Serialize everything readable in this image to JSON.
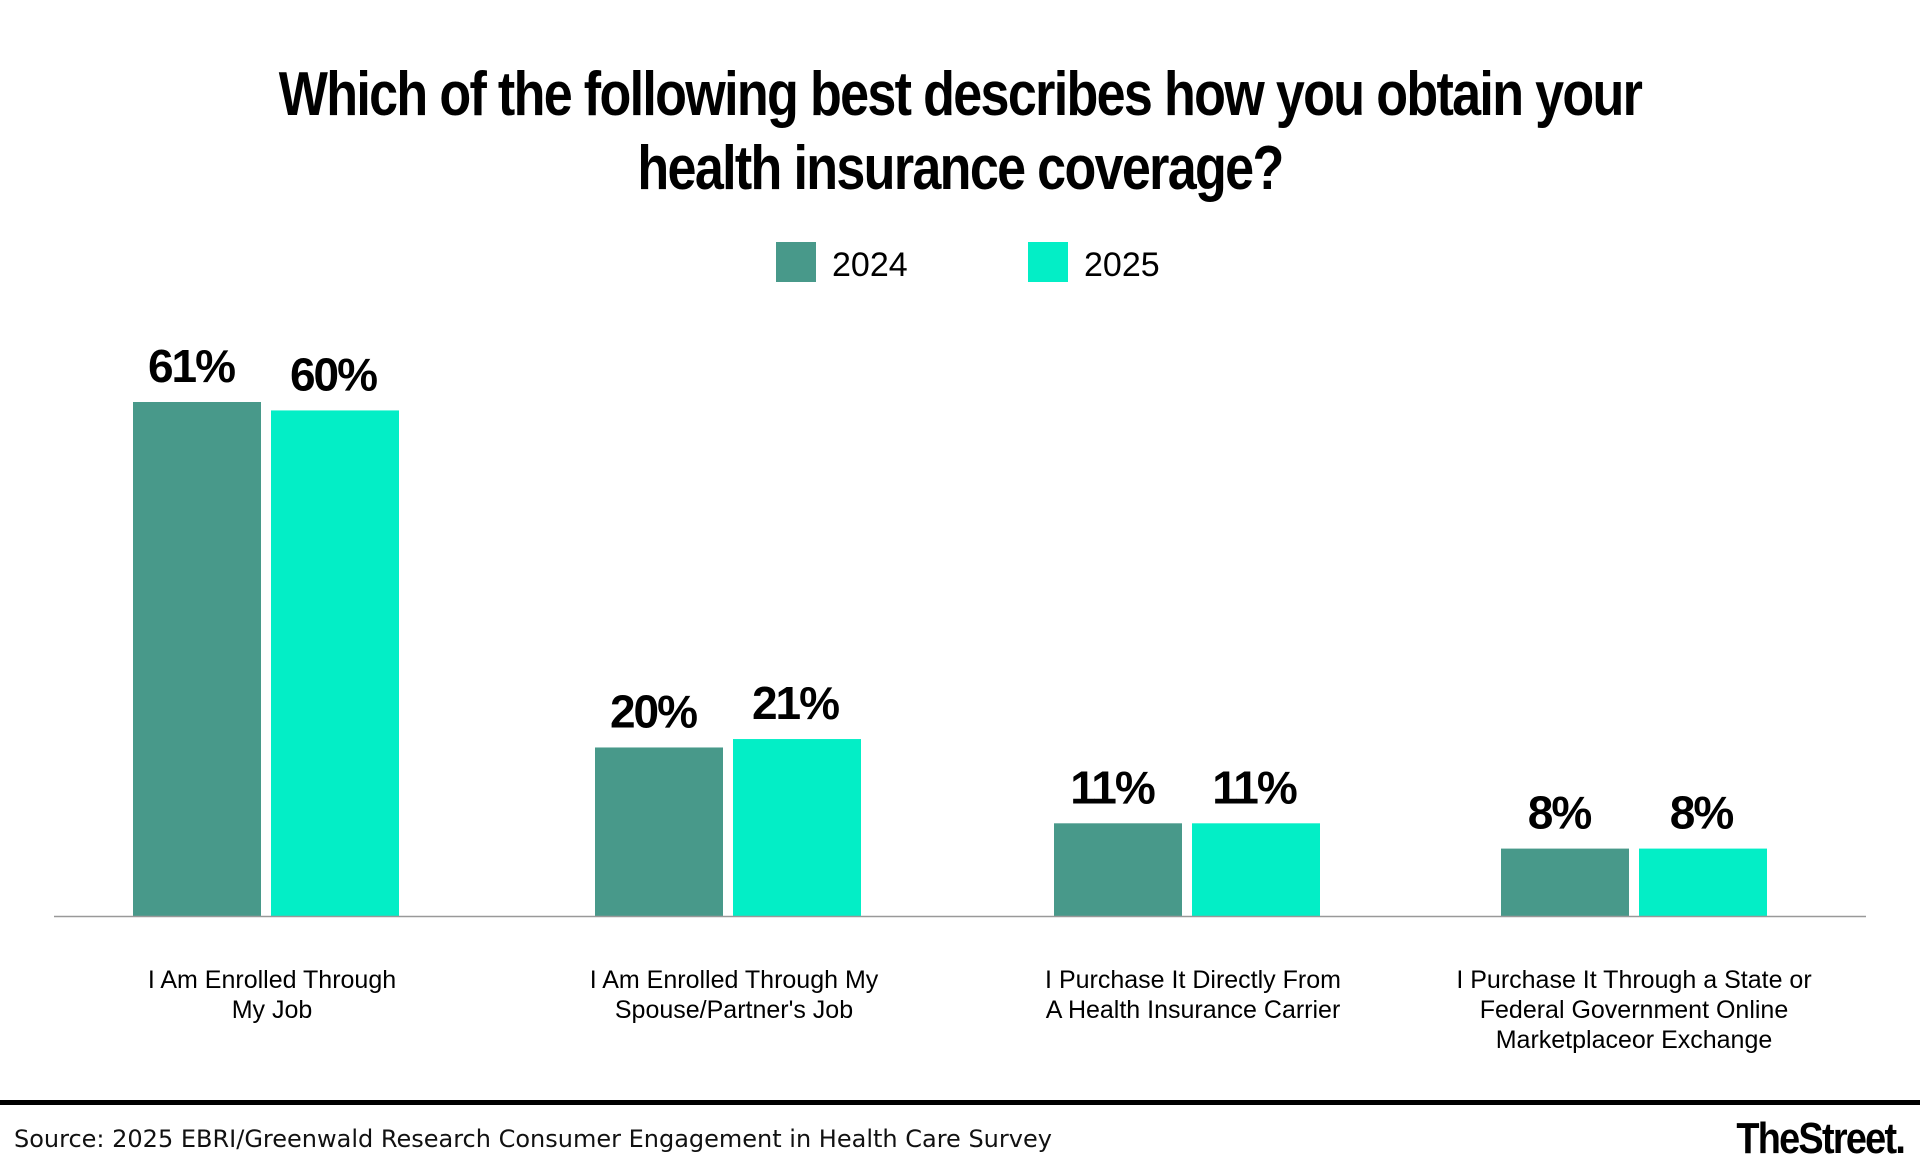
{
  "chart_data": {
    "type": "bar",
    "title": "Which of the following best describes how you obtain your health insurance coverage?",
    "categories": [
      [
        "I Am Enrolled Through",
        "My Job"
      ],
      [
        "I Am Enrolled Through My",
        "Spouse/Partner's Job"
      ],
      [
        "I Purchase It Directly From",
        "A Health Insurance Carrier"
      ],
      [
        "I Purchase It Through a State or",
        "Federal Government Online",
        "Marketplaceor Exchange"
      ]
    ],
    "series": [
      {
        "name": "2024",
        "values": [
          61,
          20,
          11,
          8
        ],
        "labels": [
          "61%",
          "20%",
          "11%",
          "8%"
        ],
        "color": "#48998a"
      },
      {
        "name": "2025",
        "values": [
          60,
          21,
          11,
          8
        ],
        "labels": [
          "60%",
          "21%",
          "11%",
          "8%"
        ],
        "color": "#03eec6"
      }
    ],
    "ylim": [
      0,
      61
    ],
    "grid": false,
    "legend_position": "top-center"
  },
  "footer": {
    "source": "Source: 2025 EBRI/Greenwald Research Consumer Engagement in Health Care Survey",
    "brand": "TheStreet."
  }
}
